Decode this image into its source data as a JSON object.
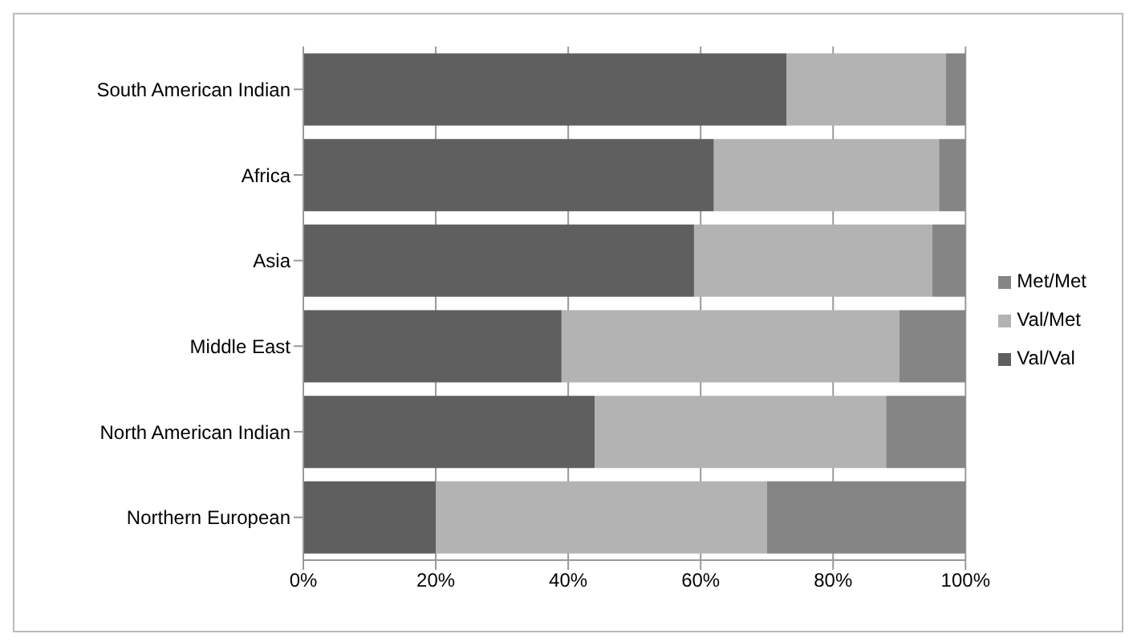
{
  "chart_data": {
    "type": "bar",
    "orientation": "horizontal",
    "stacked": true,
    "categories": [
      "South American Indian",
      "Africa",
      "Asia",
      "Middle East",
      "North American Indian",
      "Northern European"
    ],
    "series": [
      {
        "name": "Val/Val",
        "color": "#5f5f5f",
        "values": [
          73,
          62,
          59,
          39,
          44,
          20
        ]
      },
      {
        "name": "Val/Met",
        "color": "#b3b3b3",
        "values": [
          24,
          34,
          36,
          51,
          44,
          50
        ]
      },
      {
        "name": "Met/Met",
        "color": "#858585",
        "values": [
          3,
          4,
          5,
          10,
          12,
          30
        ]
      }
    ],
    "xlim": [
      0,
      100
    ],
    "xticks": [
      {
        "value": 0,
        "label": "0%"
      },
      {
        "value": 20,
        "label": "20%"
      },
      {
        "value": 40,
        "label": "40%"
      },
      {
        "value": 60,
        "label": "60%"
      },
      {
        "value": 80,
        "label": "80%"
      },
      {
        "value": 100,
        "label": "100%"
      }
    ],
    "grid": "x",
    "legend": "right"
  }
}
